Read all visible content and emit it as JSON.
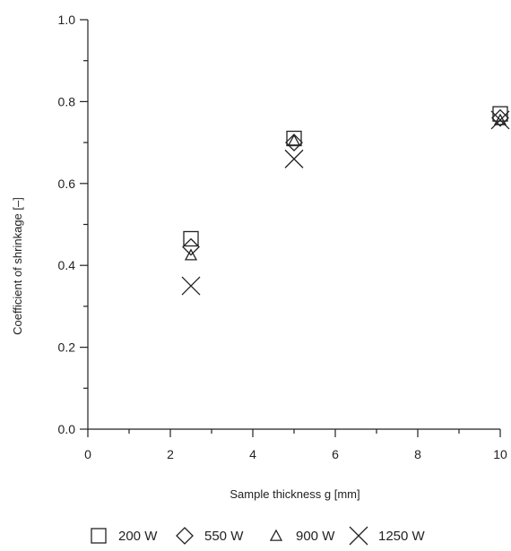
{
  "chart_data": {
    "type": "scatter",
    "title": "",
    "xlabel": "Sample thickness g [mm]",
    "ylabel": "Coefficient of shrinkage [–]",
    "xlim": [
      0,
      10
    ],
    "ylim": [
      0,
      1.0
    ],
    "x_ticks": [
      0,
      2,
      4,
      6,
      8,
      10
    ],
    "y_ticks": [
      0.0,
      0.2,
      0.4,
      0.6,
      0.8,
      1.0
    ],
    "x_tick_labels": [
      "0",
      "2",
      "4",
      "6",
      "8",
      "10"
    ],
    "y_tick_labels": [
      "0.0",
      "0.2",
      "0.4",
      "0.6",
      "0.8",
      "1.0"
    ],
    "grid": false,
    "legend_position": "bottom",
    "series": [
      {
        "name": "200 W",
        "marker": "square-icon",
        "x": [
          2.5,
          5,
          10
        ],
        "y": [
          0.465,
          0.71,
          0.77
        ]
      },
      {
        "name": "550 W",
        "marker": "diamond-icon",
        "x": [
          2.5,
          5,
          10
        ],
        "y": [
          0.445,
          0.7,
          0.76
        ]
      },
      {
        "name": "900 W",
        "marker": "triangle-icon",
        "x": [
          2.5,
          5,
          10
        ],
        "y": [
          0.425,
          0.705,
          0.755
        ]
      },
      {
        "name": "1250 W",
        "marker": "cross-icon",
        "x": [
          2.5,
          5,
          10
        ],
        "y": [
          0.35,
          0.66,
          0.755
        ]
      }
    ]
  }
}
